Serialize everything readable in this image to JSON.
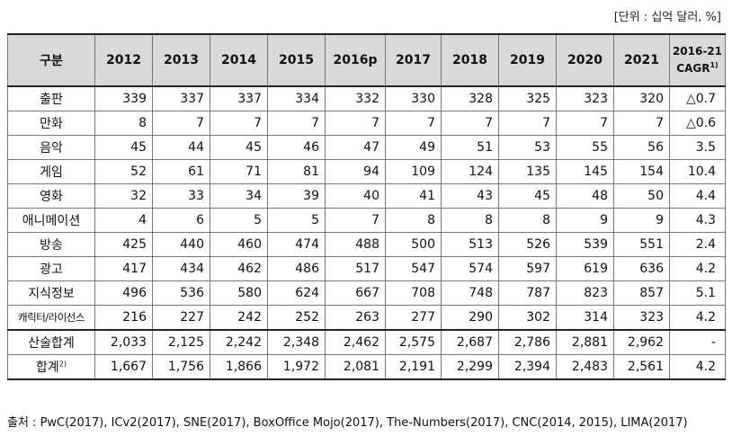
{
  "unit_note": "[단위 : 십억 달러, %]",
  "header": {
    "category": "구분",
    "years": [
      "2012",
      "2013",
      "2014",
      "2015",
      "2016p",
      "2017",
      "2018",
      "2019",
      "2020",
      "2021"
    ],
    "cagr_line1": "2016-21",
    "cagr_line2": "CAGR",
    "cagr_note": "1)"
  },
  "rows": [
    {
      "label": "출판",
      "values": [
        "339",
        "337",
        "337",
        "334",
        "332",
        "330",
        "328",
        "325",
        "323",
        "320"
      ],
      "cagr": "△0.7"
    },
    {
      "label": "만화",
      "values": [
        "8",
        "7",
        "7",
        "7",
        "7",
        "7",
        "7",
        "7",
        "7",
        "7"
      ],
      "cagr": "△0.6"
    },
    {
      "label": "음악",
      "values": [
        "45",
        "44",
        "45",
        "46",
        "47",
        "49",
        "51",
        "53",
        "55",
        "56"
      ],
      "cagr": "3.5"
    },
    {
      "label": "게임",
      "values": [
        "52",
        "61",
        "71",
        "81",
        "94",
        "109",
        "124",
        "135",
        "145",
        "154"
      ],
      "cagr": "10.4"
    },
    {
      "label": "영화",
      "values": [
        "32",
        "33",
        "34",
        "39",
        "40",
        "41",
        "43",
        "45",
        "48",
        "50"
      ],
      "cagr": "4.4"
    },
    {
      "label": "애니메이션",
      "values": [
        "4",
        "6",
        "5",
        "5",
        "7",
        "8",
        "8",
        "8",
        "9",
        "9"
      ],
      "cagr": "4.3"
    },
    {
      "label": "방송",
      "values": [
        "425",
        "440",
        "460",
        "474",
        "488",
        "500",
        "513",
        "526",
        "539",
        "551"
      ],
      "cagr": "2.4"
    },
    {
      "label": "광고",
      "values": [
        "417",
        "434",
        "462",
        "486",
        "517",
        "547",
        "574",
        "597",
        "619",
        "636"
      ],
      "cagr": "4.2"
    },
    {
      "label": "지식정보",
      "values": [
        "496",
        "536",
        "580",
        "624",
        "667",
        "708",
        "748",
        "787",
        "823",
        "857"
      ],
      "cagr": "5.1"
    },
    {
      "label": "캐릭터/라이선스",
      "values": [
        "216",
        "227",
        "242",
        "252",
        "263",
        "277",
        "290",
        "302",
        "314",
        "323"
      ],
      "cagr": "4.2"
    }
  ],
  "totals": [
    {
      "label": "산술합계",
      "note": "",
      "values": [
        "2,033",
        "2,125",
        "2,242",
        "2,348",
        "2,462",
        "2,575",
        "2,687",
        "2,786",
        "2,881",
        "2,962"
      ],
      "cagr": "-"
    },
    {
      "label": "합계",
      "note": "2)",
      "values": [
        "1,667",
        "1,756",
        "1,866",
        "1,972",
        "2,081",
        "2,191",
        "2,299",
        "2,394",
        "2,483",
        "2,561"
      ],
      "cagr": "4.2"
    }
  ],
  "source": "출처 : PwC(2017), ICv2(2017), SNE(2017), BoxOffice Mojo(2017), The-Numbers(2017), CNC(2014, 2015), LIMA(2017)"
}
